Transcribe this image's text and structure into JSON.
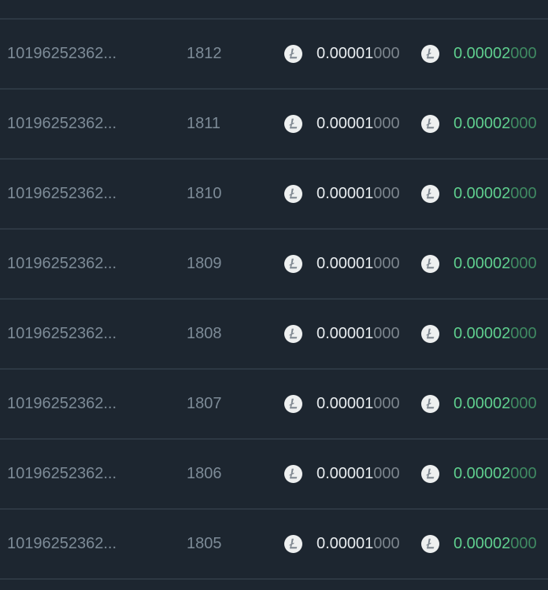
{
  "icon": "litecoin-icon",
  "colors": {
    "background": "#1d2630",
    "value_green": "#5fcf8e"
  },
  "rows": [
    {
      "id": "10196252362...",
      "block": "1812",
      "amount_main": "0.00001",
      "amount_tail": "000",
      "reward_main": "0.00002",
      "reward_tail": "000"
    },
    {
      "id": "10196252362...",
      "block": "1811",
      "amount_main": "0.00001",
      "amount_tail": "000",
      "reward_main": "0.00002",
      "reward_tail": "000"
    },
    {
      "id": "10196252362...",
      "block": "1810",
      "amount_main": "0.00001",
      "amount_tail": "000",
      "reward_main": "0.00002",
      "reward_tail": "000"
    },
    {
      "id": "10196252362...",
      "block": "1809",
      "amount_main": "0.00001",
      "amount_tail": "000",
      "reward_main": "0.00002",
      "reward_tail": "000"
    },
    {
      "id": "10196252362...",
      "block": "1808",
      "amount_main": "0.00001",
      "amount_tail": "000",
      "reward_main": "0.00002",
      "reward_tail": "000"
    },
    {
      "id": "10196252362...",
      "block": "1807",
      "amount_main": "0.00001",
      "amount_tail": "000",
      "reward_main": "0.00002",
      "reward_tail": "000"
    },
    {
      "id": "10196252362...",
      "block": "1806",
      "amount_main": "0.00001",
      "amount_tail": "000",
      "reward_main": "0.00002",
      "reward_tail": "000"
    },
    {
      "id": "10196252362...",
      "block": "1805",
      "amount_main": "0.00001",
      "amount_tail": "000",
      "reward_main": "0.00002",
      "reward_tail": "000"
    }
  ]
}
